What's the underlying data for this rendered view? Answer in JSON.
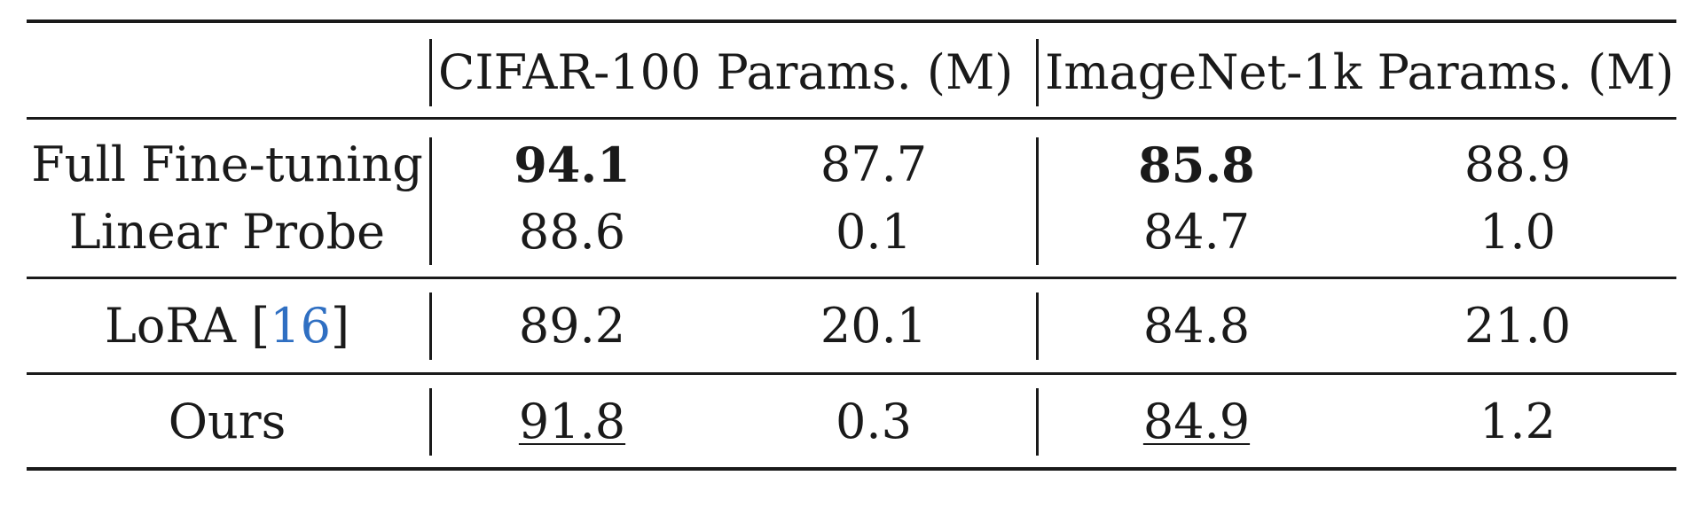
{
  "table": {
    "header": {
      "cifar": "CIFAR-100 Params. (M)",
      "imagenet": "ImageNet-1k Params. (M)"
    },
    "rows": [
      {
        "method": "Full Fine-tuning",
        "cifar_acc": "94.1",
        "cifar_params": "87.7",
        "imagenet_acc": "85.8",
        "imagenet_params": "88.9",
        "cifar_acc_style": "bold",
        "imagenet_acc_style": "bold"
      },
      {
        "method": "Linear Probe",
        "cifar_acc": "88.6",
        "cifar_params": "0.1",
        "imagenet_acc": "84.7",
        "imagenet_params": "1.0"
      },
      {
        "method": "LoRA",
        "method_open": "[",
        "method_cite": "16",
        "method_close": "]",
        "cifar_acc": "89.2",
        "cifar_params": "20.1",
        "imagenet_acc": "84.8",
        "imagenet_params": "21.0"
      },
      {
        "method": "Ours",
        "cifar_acc": "91.8",
        "cifar_params": "0.3",
        "imagenet_acc": "84.9",
        "imagenet_params": "1.2",
        "cifar_acc_style": "underline",
        "imagenet_acc_style": "underline"
      }
    ],
    "colors": {
      "text": "#1a1a1a",
      "citation": "#2f6fc2"
    }
  }
}
